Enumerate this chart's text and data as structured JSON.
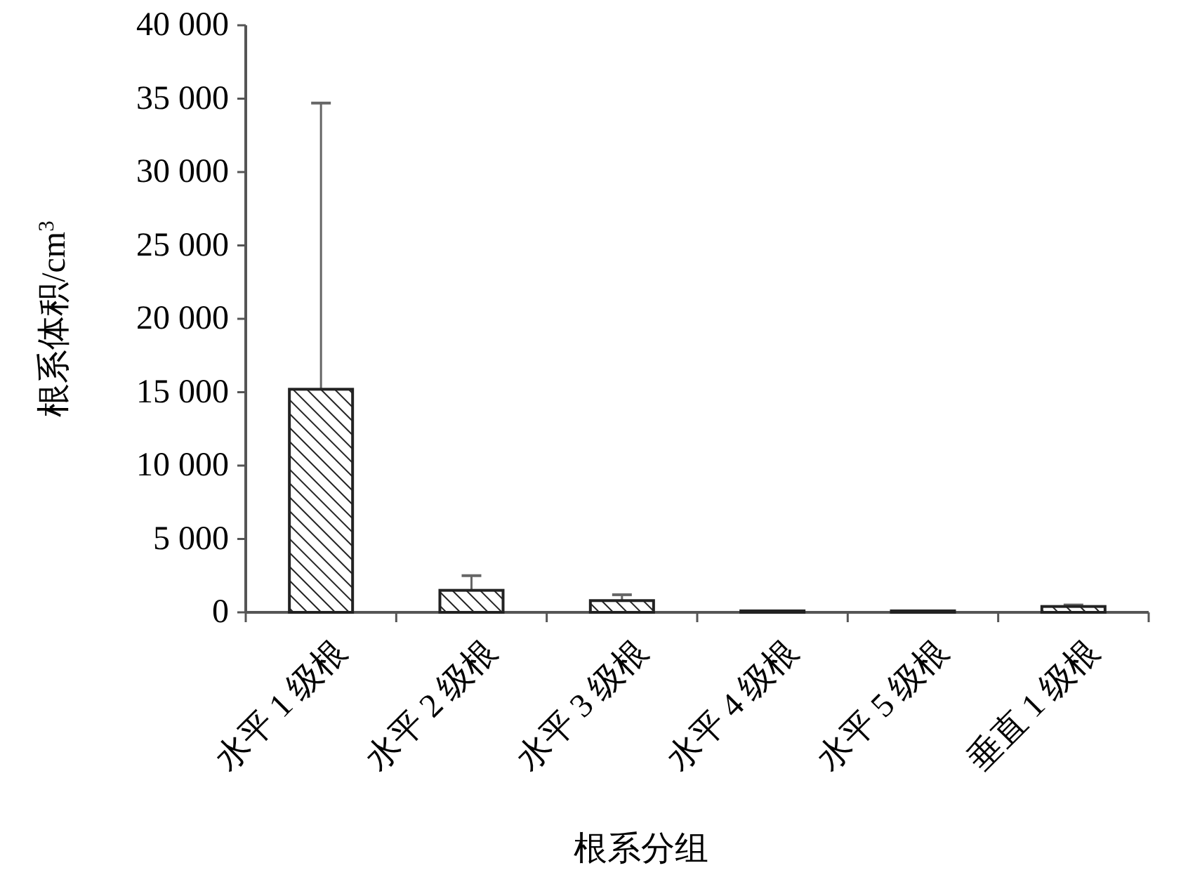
{
  "chart_data": {
    "type": "bar",
    "xlabel": "根系分组",
    "ylabel": "根系体积/cm$^{3}$",
    "categories": [
      "水平 1 级根",
      "水平 2 级根",
      "水平 3 级根",
      "水平 4 级根",
      "水平 5 级根",
      "垂直 1 级根"
    ],
    "values": [
      15200,
      1500,
      800,
      100,
      100,
      400
    ],
    "errors": [
      [
        15200,
        34700
      ],
      [
        1500,
        2500
      ],
      [
        800,
        1200
      ],
      null,
      null,
      [
        400,
        500
      ]
    ],
    "color": "#222222",
    "ylim": [
      0,
      40000
    ],
    "yticks": [
      0,
      {
        "value": 5000,
        "label": "5 000"
      },
      {
        "value": 10000,
        "label": "10 000"
      },
      {
        "value": 15000,
        "label": "15 000"
      },
      {
        "value": 20000,
        "label": "20 000"
      },
      {
        "value": 25000,
        "label": "25 000"
      },
      {
        "value": 30000,
        "label": "30 000"
      },
      {
        "value": 35000,
        "label": "35 000"
      },
      {
        "value": 40000,
        "label": "40 000"
      }
    ]
  }
}
